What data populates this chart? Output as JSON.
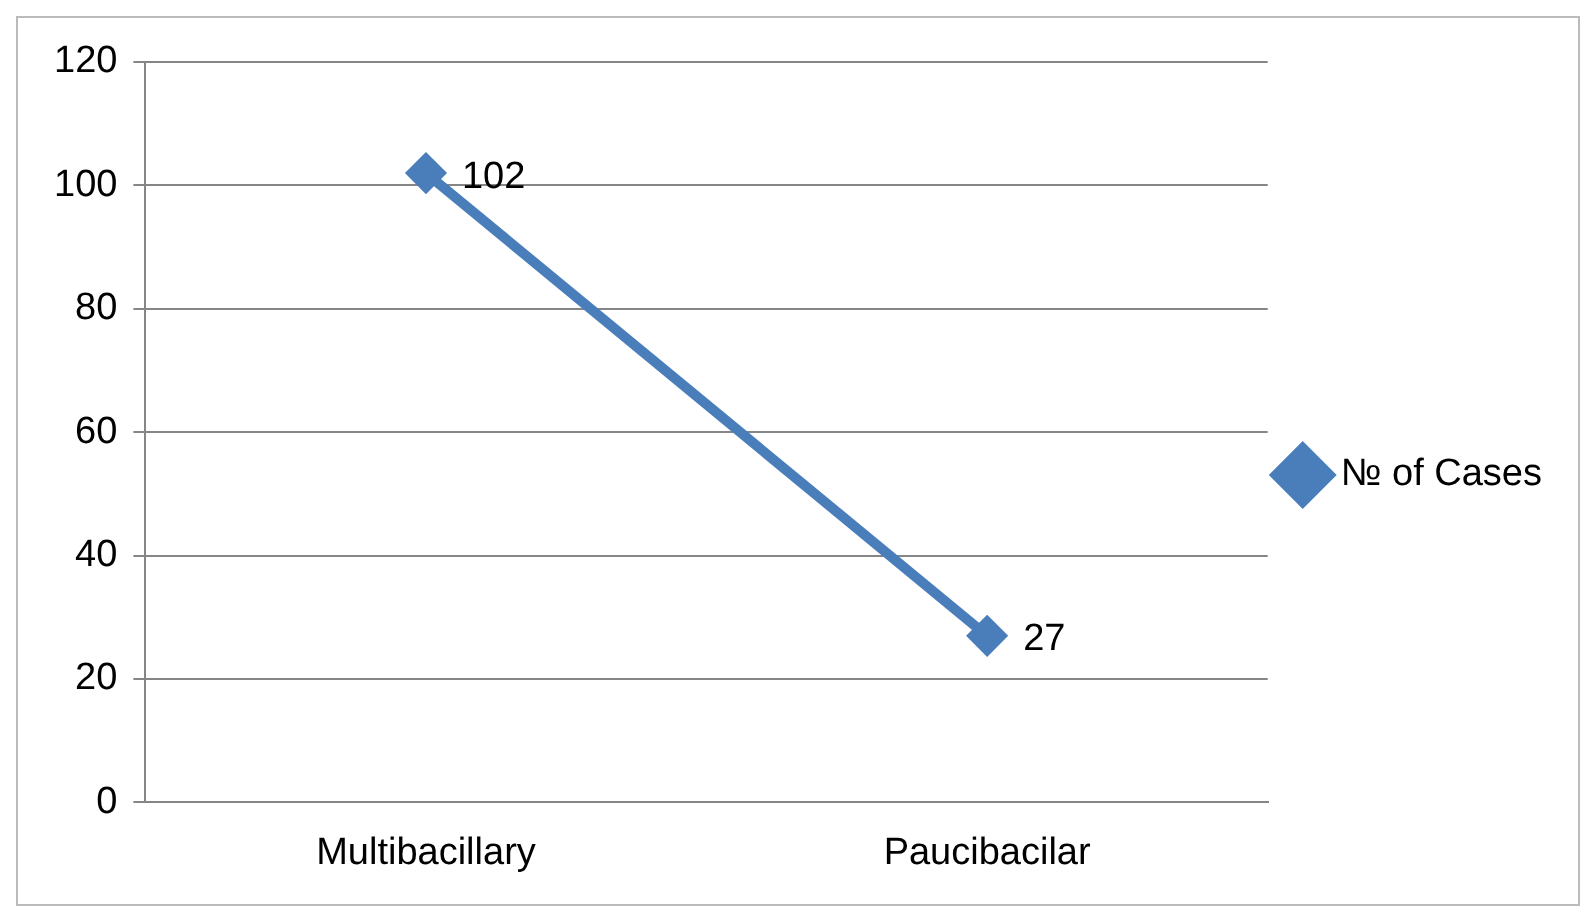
{
  "chart_data": {
    "type": "line",
    "categories": [
      "Multibacillary",
      "Paucibacilar"
    ],
    "series": [
      {
        "name": "№ of Cases",
        "color": "#4a7ebb",
        "values": [
          102,
          27
        ]
      }
    ],
    "ylim": [
      0,
      120
    ],
    "yticks": [
      0,
      20,
      40,
      60,
      80,
      100,
      120
    ],
    "grid": "y",
    "legend": "right",
    "marker": "diamond",
    "line_style": "solid",
    "data_labels": true
  }
}
